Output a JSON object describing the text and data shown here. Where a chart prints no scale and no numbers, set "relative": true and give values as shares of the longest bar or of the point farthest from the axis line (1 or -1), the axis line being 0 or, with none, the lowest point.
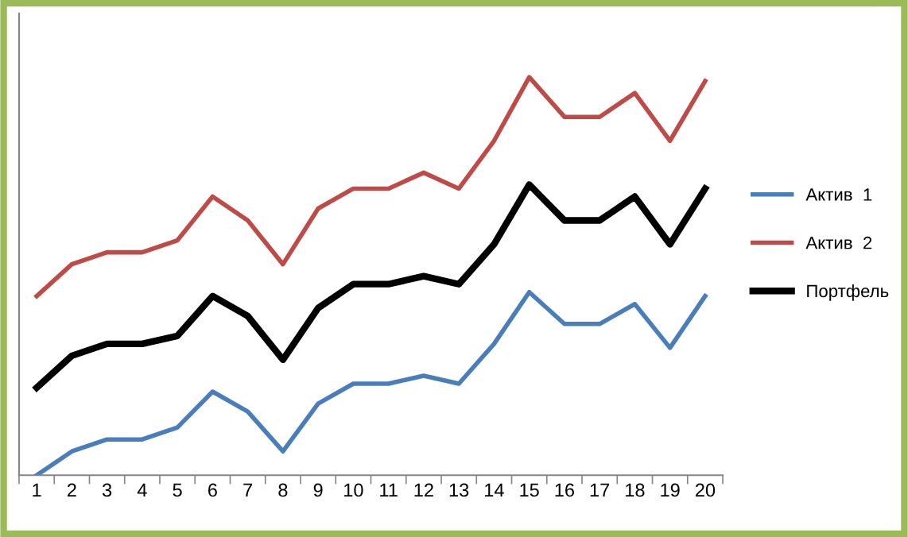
{
  "chart_data": {
    "type": "line",
    "relative": true,
    "legend": "right",
    "grid": false,
    "categories": [
      "1",
      "2",
      "3",
      "4",
      "5",
      "6",
      "7",
      "8",
      "9",
      "10",
      "11",
      "12",
      "13",
      "14",
      "15",
      "16",
      "17",
      "18",
      "19",
      "20"
    ],
    "series": [
      {
        "name": "Актив  1",
        "color": "#4a7ebb",
        "values": [
          0,
          0.06,
          0.09,
          0.09,
          0.12,
          0.21,
          0.16,
          0.06,
          0.18,
          0.23,
          0.23,
          0.25,
          0.23,
          0.33,
          0.46,
          0.38,
          0.38,
          0.43,
          0.32,
          0.45
        ]
      },
      {
        "name": "Актив  2",
        "color": "#be4b48",
        "values": [
          0.45,
          0.53,
          0.56,
          0.56,
          0.59,
          0.7,
          0.64,
          0.53,
          0.67,
          0.72,
          0.72,
          0.76,
          0.72,
          0.84,
          1.0,
          0.9,
          0.9,
          0.96,
          0.84,
          0.99
        ]
      },
      {
        "name": "Портфель",
        "color": "#000000",
        "values": [
          0.22,
          0.3,
          0.33,
          0.33,
          0.35,
          0.45,
          0.4,
          0.29,
          0.42,
          0.48,
          0.48,
          0.5,
          0.48,
          0.58,
          0.73,
          0.64,
          0.64,
          0.7,
          0.58,
          0.72
        ]
      }
    ]
  }
}
